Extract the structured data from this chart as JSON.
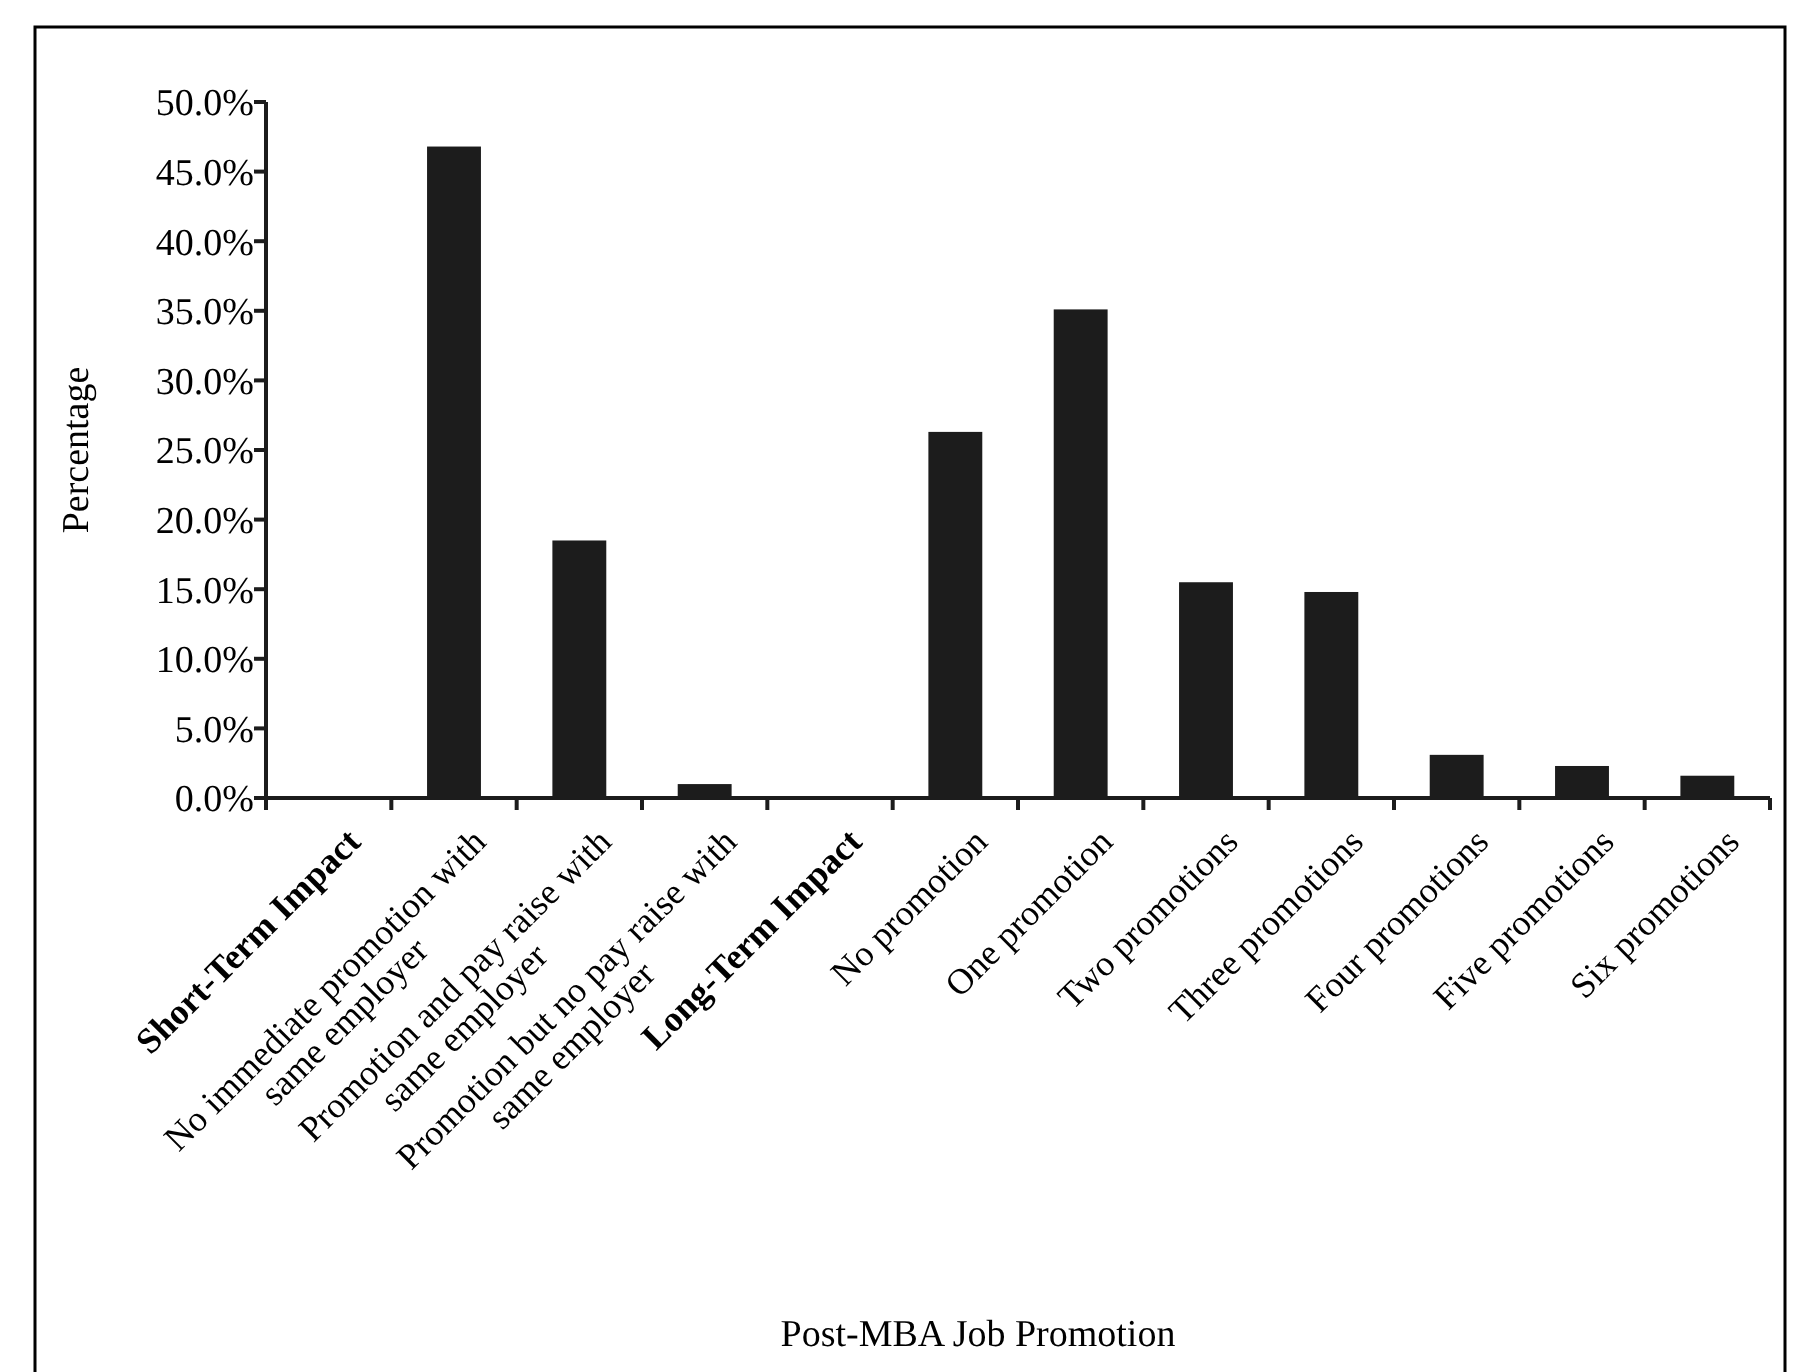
{
  "chart_data": {
    "type": "bar",
    "xlabel": "Post-MBA Job Promotion",
    "ylabel": "Percentage",
    "categories": [
      "Short-Term Impact",
      "No immediate promotion with same employer",
      "Promotion and pay raise with same employer",
      "Promotion but no pay raise with same employer",
      "Long-Term Impact",
      "No promotion",
      "One promotion",
      "Two promotions",
      "Three promotions",
      "Four promotions",
      "Five promotions",
      "Six promotions"
    ],
    "values": [
      null,
      46.8,
      18.5,
      1.0,
      null,
      26.3,
      35.1,
      15.5,
      14.8,
      3.1,
      2.3,
      1.6
    ],
    "color": "#1c1c1c",
    "ylim": [
      0,
      50
    ],
    "yticks": [
      {
        "value": 0,
        "label": "0.0%"
      },
      {
        "value": 5,
        "label": "5.0%"
      },
      {
        "value": 10,
        "label": "10.0%"
      },
      {
        "value": 15,
        "label": "15.0%"
      },
      {
        "value": 20,
        "label": "20.0%"
      },
      {
        "value": 25,
        "label": "25.0%"
      },
      {
        "value": 30,
        "label": "30.0%"
      },
      {
        "value": 35,
        "label": "35.0%"
      },
      {
        "value": 40,
        "label": "40.0%"
      },
      {
        "value": 45,
        "label": "45.0%"
      },
      {
        "value": 50,
        "label": "50.0%"
      }
    ],
    "grid": false
  }
}
